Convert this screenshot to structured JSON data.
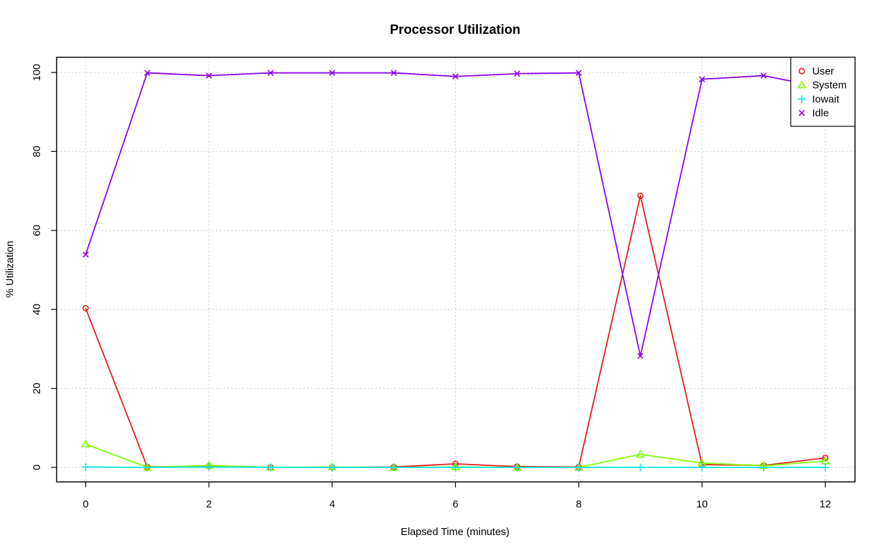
{
  "chart_data": {
    "type": "line",
    "title": "Processor Utilization",
    "xlabel": "Elapsed Time (minutes)",
    "ylabel": "% Utilization",
    "xlim": [
      0,
      12
    ],
    "ylim": [
      0,
      100
    ],
    "x_ticks": [
      0,
      2,
      4,
      6,
      8,
      10,
      12
    ],
    "y_ticks": [
      0,
      20,
      40,
      60,
      80,
      100
    ],
    "grid": true,
    "legend_position": "top-right",
    "x": [
      0,
      1,
      2,
      3,
      4,
      5,
      6,
      7,
      8,
      9,
      10,
      11,
      12
    ],
    "series": [
      {
        "name": "User",
        "marker": "circle",
        "color": "#e41a1c",
        "values": [
          40.3,
          0.1,
          0.3,
          0.0,
          0.0,
          0.1,
          0.9,
          0.2,
          0.1,
          68.8,
          0.7,
          0.5,
          2.4
        ]
      },
      {
        "name": "System",
        "marker": "triangle",
        "color": "#7fff00",
        "values": [
          5.9,
          0.0,
          0.5,
          0.0,
          0.1,
          0.0,
          0.1,
          0.0,
          0.0,
          3.3,
          1.1,
          0.4,
          1.6
        ]
      },
      {
        "name": "Iowait",
        "marker": "plus",
        "color": "#00e5ee",
        "values": [
          0.1,
          0.0,
          0.1,
          0.0,
          0.0,
          0.0,
          0.0,
          0.0,
          0.0,
          0.0,
          0.0,
          0.0,
          0.0
        ]
      },
      {
        "name": "Idle",
        "marker": "cross",
        "color": "#8a00ee",
        "values": [
          53.9,
          99.9,
          99.2,
          99.9,
          99.9,
          99.9,
          99.0,
          99.7,
          99.9,
          28.2,
          98.3,
          99.2,
          96.1
        ]
      }
    ]
  }
}
